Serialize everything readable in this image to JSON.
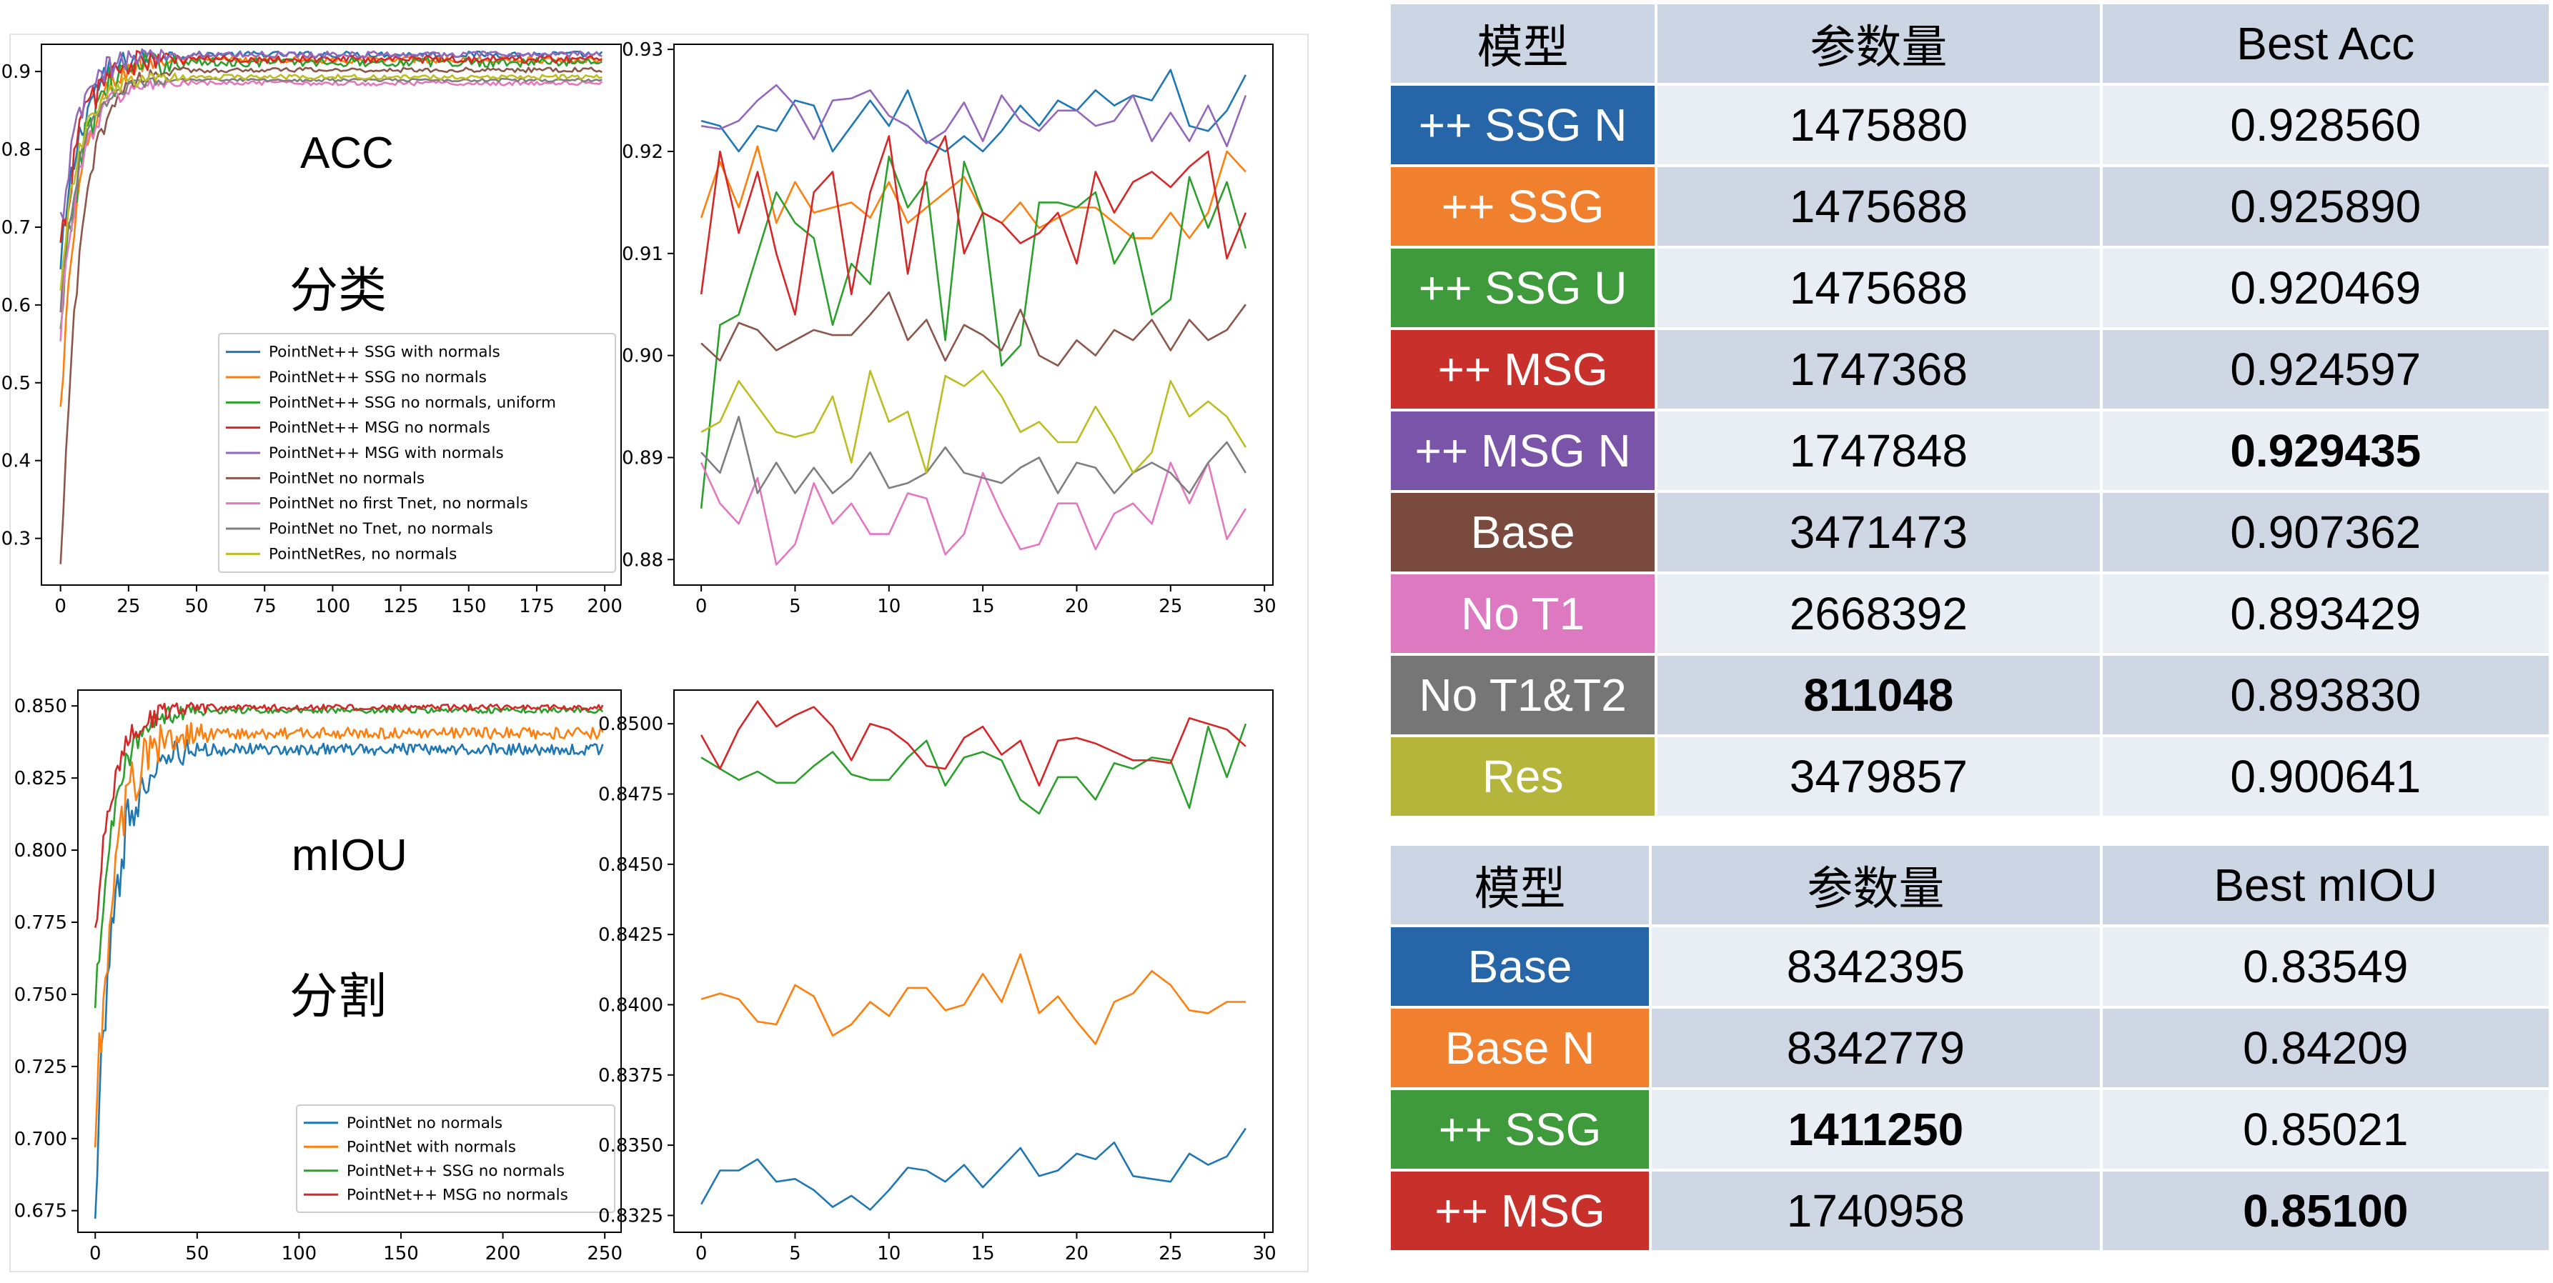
{
  "charts": {
    "acc_label": "ACC",
    "cls_label": "分类",
    "miou_label": "mIOU",
    "seg_label": "分割"
  },
  "chart_data": [
    {
      "type": "line",
      "id": "acc_full",
      "x_range": [
        0,
        199
      ],
      "xlim": [
        -7,
        206
      ],
      "ylim": [
        0.24,
        0.935
      ],
      "xticks": [
        0,
        25,
        50,
        75,
        100,
        125,
        150,
        175,
        200
      ],
      "yticks": [
        0.3,
        0.4,
        0.5,
        0.6,
        0.7,
        0.8,
        0.9
      ],
      "legend": "lower-right",
      "series": [
        {
          "name": "PointNet++ SSG with normals",
          "color": "#1f77b4",
          "start": 0.64,
          "plateau": 0.922,
          "noise": 0.004
        },
        {
          "name": "PointNet++ SSG no normals",
          "color": "#ff7f0e",
          "start": 0.46,
          "plateau": 0.915,
          "noise": 0.004
        },
        {
          "name": "PointNet++ SSG no normals, uniform",
          "color": "#2ca02c",
          "start": 0.55,
          "plateau": 0.912,
          "noise": 0.006
        },
        {
          "name": "PointNet++ MSG no normals",
          "color": "#d62728",
          "start": 0.66,
          "plateau": 0.916,
          "noise": 0.005
        },
        {
          "name": "PointNet++ MSG with normals",
          "color": "#9467bd",
          "start": 0.7,
          "plateau": 0.922,
          "noise": 0.004
        },
        {
          "name": "PointNet no normals",
          "color": "#8c564b",
          "start": 0.25,
          "plateau": 0.902,
          "noise": 0.003
        },
        {
          "name": "PointNet no first Tnet, no normals",
          "color": "#e377c2",
          "start": 0.57,
          "plateau": 0.885,
          "noise": 0.003
        },
        {
          "name": "PointNet no Tnet, no normals",
          "color": "#7f7f7f",
          "start": 0.6,
          "plateau": 0.889,
          "noise": 0.002
        },
        {
          "name": "PointNetRes, no normals",
          "color": "#bcbd22",
          "start": 0.63,
          "plateau": 0.893,
          "noise": 0.003
        }
      ]
    },
    {
      "type": "line",
      "id": "acc_last30",
      "xlim": [
        -1.45,
        30.45
      ],
      "ylim": [
        0.8775,
        0.9305
      ],
      "xticks": [
        0,
        5,
        10,
        15,
        20,
        25,
        30
      ],
      "yticks": [
        0.88,
        0.89,
        0.9,
        0.91,
        0.92,
        0.93
      ],
      "series": [
        {
          "color": "#1f77b4",
          "values": [
            0.923,
            0.9225,
            0.92,
            0.9225,
            0.922,
            0.925,
            0.9245,
            0.92,
            0.9225,
            0.925,
            0.9225,
            0.926,
            0.921,
            0.92,
            0.9215,
            0.92,
            0.922,
            0.9245,
            0.9225,
            0.925,
            0.924,
            0.926,
            0.9245,
            0.9255,
            0.925,
            0.928,
            0.9225,
            0.922,
            0.924,
            0.9275
          ]
        },
        {
          "color": "#ff7f0e",
          "values": [
            0.9135,
            0.919,
            0.9145,
            0.9205,
            0.913,
            0.917,
            0.914,
            0.9145,
            0.915,
            0.9135,
            0.917,
            0.913,
            0.9145,
            0.916,
            0.9175,
            0.914,
            0.913,
            0.915,
            0.9125,
            0.9135,
            0.9145,
            0.9145,
            0.913,
            0.9115,
            0.9115,
            0.914,
            0.9115,
            0.914,
            0.92,
            0.918
          ]
        },
        {
          "color": "#2ca02c",
          "values": [
            0.885,
            0.903,
            0.904,
            0.91,
            0.916,
            0.913,
            0.9115,
            0.903,
            0.909,
            0.907,
            0.9195,
            0.9145,
            0.917,
            0.9015,
            0.919,
            0.914,
            0.899,
            0.901,
            0.915,
            0.915,
            0.9145,
            0.916,
            0.909,
            0.912,
            0.904,
            0.9055,
            0.9175,
            0.9125,
            0.917,
            0.9105
          ]
        },
        {
          "color": "#d62728",
          "values": [
            0.906,
            0.92,
            0.912,
            0.918,
            0.91,
            0.904,
            0.916,
            0.918,
            0.906,
            0.916,
            0.9215,
            0.908,
            0.918,
            0.9215,
            0.91,
            0.914,
            0.913,
            0.911,
            0.912,
            0.914,
            0.909,
            0.918,
            0.914,
            0.917,
            0.918,
            0.9165,
            0.9185,
            0.92,
            0.9095,
            0.914
          ]
        },
        {
          "color": "#9467bd",
          "values": [
            0.9225,
            0.9222,
            0.923,
            0.925,
            0.9265,
            0.9245,
            0.9212,
            0.925,
            0.9252,
            0.926,
            0.9235,
            0.9225,
            0.9208,
            0.922,
            0.9248,
            0.921,
            0.9255,
            0.923,
            0.922,
            0.924,
            0.924,
            0.9225,
            0.923,
            0.9255,
            0.921,
            0.9238,
            0.921,
            0.9245,
            0.9205,
            0.9255
          ]
        },
        {
          "color": "#8c564b",
          "values": [
            0.9012,
            0.8995,
            0.9032,
            0.9025,
            0.9005,
            0.9015,
            0.9025,
            0.902,
            0.902,
            0.904,
            0.9062,
            0.9015,
            0.9035,
            0.8995,
            0.903,
            0.902,
            0.9005,
            0.9045,
            0.9,
            0.899,
            0.9015,
            0.9,
            0.9025,
            0.9015,
            0.9035,
            0.9005,
            0.9035,
            0.9015,
            0.9025,
            0.905
          ]
        },
        {
          "color": "#e377c2",
          "values": [
            0.8895,
            0.8855,
            0.8835,
            0.888,
            0.8795,
            0.8815,
            0.8875,
            0.8835,
            0.8855,
            0.8825,
            0.8825,
            0.8865,
            0.886,
            0.8805,
            0.8825,
            0.8885,
            0.8845,
            0.881,
            0.8815,
            0.8855,
            0.8855,
            0.881,
            0.8845,
            0.8855,
            0.8835,
            0.8895,
            0.8855,
            0.8895,
            0.882,
            0.885
          ]
        },
        {
          "color": "#7f7f7f",
          "values": [
            0.8905,
            0.8885,
            0.894,
            0.8865,
            0.8895,
            0.8865,
            0.889,
            0.8865,
            0.888,
            0.8905,
            0.887,
            0.8875,
            0.8885,
            0.891,
            0.8885,
            0.888,
            0.8875,
            0.889,
            0.89,
            0.8865,
            0.8895,
            0.889,
            0.8865,
            0.8885,
            0.8895,
            0.8885,
            0.8865,
            0.8895,
            0.8915,
            0.8885
          ]
        },
        {
          "color": "#bcbd22",
          "values": [
            0.8925,
            0.8935,
            0.8975,
            0.895,
            0.8925,
            0.892,
            0.8925,
            0.896,
            0.8895,
            0.8985,
            0.8935,
            0.8945,
            0.8885,
            0.898,
            0.897,
            0.8985,
            0.896,
            0.8925,
            0.8935,
            0.8915,
            0.8915,
            0.895,
            0.892,
            0.8885,
            0.8905,
            0.8975,
            0.894,
            0.8955,
            0.894,
            0.891
          ]
        }
      ]
    },
    {
      "type": "line",
      "id": "miou_full",
      "x_range": [
        0,
        249
      ],
      "xlim": [
        -8.5,
        258
      ],
      "ylim": [
        0.6675,
        0.8555
      ],
      "xticks": [
        0,
        50,
        100,
        150,
        200,
        250
      ],
      "yticks": [
        0.675,
        0.7,
        0.725,
        0.75,
        0.775,
        0.8,
        0.825,
        0.85
      ],
      "legend": "lower-right",
      "series": [
        {
          "name": "PointNet no normals",
          "color": "#1f77b4",
          "start": 0.675,
          "plateau": 0.835,
          "noise": 0.002
        },
        {
          "name": "PointNet with normals",
          "color": "#ff7f0e",
          "start": 0.698,
          "plateau": 0.8405,
          "noise": 0.002
        },
        {
          "name": "PointNet++ SSG no normals",
          "color": "#2ca02c",
          "start": 0.745,
          "plateau": 0.8485,
          "noise": 0.001
        },
        {
          "name": "PointNet++ MSG no normals",
          "color": "#d62728",
          "start": 0.772,
          "plateau": 0.8495,
          "noise": 0.001
        }
      ]
    },
    {
      "type": "line",
      "id": "miou_last30",
      "xlim": [
        -1.45,
        30.45
      ],
      "ylim": [
        0.8319,
        0.8512
      ],
      "xticks": [
        0,
        5,
        10,
        15,
        20,
        25,
        30
      ],
      "yticks": [
        0.8325,
        0.835,
        0.8375,
        0.84,
        0.8425,
        0.845,
        0.8475,
        0.85
      ],
      "series": [
        {
          "color": "#1f77b4",
          "values": [
            0.8329,
            0.8341,
            0.8341,
            0.8345,
            0.8337,
            0.8338,
            0.8334,
            0.8328,
            0.8332,
            0.8327,
            0.8334,
            0.8342,
            0.8341,
            0.8337,
            0.8343,
            0.8335,
            0.8342,
            0.8349,
            0.8339,
            0.8341,
            0.8347,
            0.8345,
            0.8351,
            0.8339,
            0.8338,
            0.8337,
            0.8347,
            0.8343,
            0.8346,
            0.8356
          ]
        },
        {
          "color": "#ff7f0e",
          "values": [
            0.8402,
            0.8404,
            0.8402,
            0.8394,
            0.8393,
            0.8407,
            0.8403,
            0.8389,
            0.8393,
            0.8401,
            0.8396,
            0.8406,
            0.8406,
            0.8398,
            0.84,
            0.8411,
            0.8401,
            0.8418,
            0.8397,
            0.8403,
            0.8394,
            0.8386,
            0.8401,
            0.8404,
            0.8412,
            0.8407,
            0.8398,
            0.8397,
            0.8401,
            0.8401
          ]
        },
        {
          "color": "#2ca02c",
          "values": [
            0.8488,
            0.8484,
            0.848,
            0.8483,
            0.8479,
            0.8479,
            0.8485,
            0.849,
            0.8482,
            0.848,
            0.848,
            0.8488,
            0.8494,
            0.8478,
            0.8488,
            0.849,
            0.8487,
            0.8473,
            0.8468,
            0.8481,
            0.8481,
            0.8473,
            0.8486,
            0.8484,
            0.8488,
            0.8487,
            0.847,
            0.8499,
            0.8481,
            0.85
          ]
        },
        {
          "color": "#d62728",
          "values": [
            0.8496,
            0.8484,
            0.8498,
            0.8508,
            0.8499,
            0.8503,
            0.8506,
            0.8499,
            0.8487,
            0.85,
            0.8498,
            0.8493,
            0.8485,
            0.8484,
            0.8495,
            0.8499,
            0.8489,
            0.8494,
            0.8478,
            0.8494,
            0.8495,
            0.8493,
            0.849,
            0.8487,
            0.8487,
            0.8486,
            0.8502,
            0.85,
            0.8498,
            0.8492
          ]
        }
      ]
    }
  ],
  "cls_table": {
    "header": [
      "模型",
      "参数量",
      "Best Acc"
    ],
    "rows": [
      {
        "label": "++ SSG N",
        "color": "#2565a8",
        "params": "1475880",
        "best": "0.928560",
        "params_bold": false,
        "best_bold": false
      },
      {
        "label": "++ SSG",
        "color": "#f07f2e",
        "params": "1475688",
        "best": "0.925890",
        "params_bold": false,
        "best_bold": false
      },
      {
        "label": "++ SSG U",
        "color": "#3e9a3a",
        "params": "1475688",
        "best": "0.920469",
        "params_bold": false,
        "best_bold": false
      },
      {
        "label": "++ MSG",
        "color": "#c8312b",
        "params": "1747368",
        "best": "0.924597",
        "params_bold": false,
        "best_bold": false
      },
      {
        "label": "++ MSG N",
        "color": "#7a54a8",
        "params": "1747848",
        "best": "0.929435",
        "params_bold": false,
        "best_bold": true
      },
      {
        "label": "Base",
        "color": "#7a4a3e",
        "params": "3471473",
        "best": "0.907362",
        "params_bold": false,
        "best_bold": false
      },
      {
        "label": "No T1",
        "color": "#dc79c1",
        "params": "2668392",
        "best": "0.893429",
        "params_bold": false,
        "best_bold": false
      },
      {
        "label": "No T1&T2",
        "color": "#767676",
        "params": "811048",
        "best": "0.893830",
        "params_bold": true,
        "best_bold": false
      },
      {
        "label": "Res",
        "color": "#b5b43b",
        "params": "3479857",
        "best": "0.900641",
        "params_bold": false,
        "best_bold": false
      }
    ]
  },
  "seg_table": {
    "header": [
      "模型",
      "参数量",
      "Best mIOU"
    ],
    "rows": [
      {
        "label": "Base",
        "color": "#2565a8",
        "params": "8342395",
        "best": "0.83549",
        "params_bold": false,
        "best_bold": false
      },
      {
        "label": "Base N",
        "color": "#f07f2e",
        "params": "8342779",
        "best": "0.84209",
        "params_bold": false,
        "best_bold": false
      },
      {
        "label": "++ SSG",
        "color": "#3e9a3a",
        "params": "1411250",
        "best": "0.85021",
        "params_bold": true,
        "best_bold": false
      },
      {
        "label": "++ MSG",
        "color": "#c8312b",
        "params": "1740958",
        "best": "0.85100",
        "params_bold": false,
        "best_bold": true
      }
    ]
  }
}
